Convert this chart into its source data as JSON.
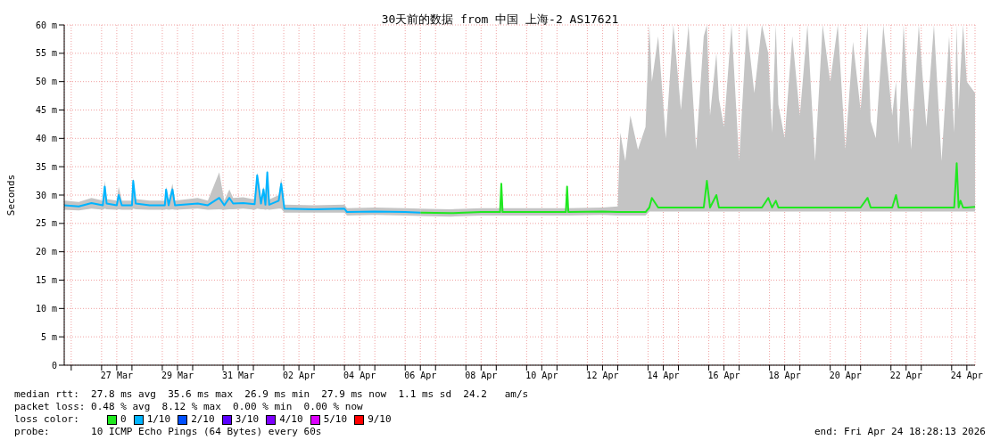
{
  "chart_data": {
    "type": "line",
    "title": "30天前的数据 from 中国 上海-2 AS17621",
    "ylabel": "Seconds",
    "legend_title": "loss color:",
    "legend": "bottom",
    "grid": true,
    "marker": "none",
    "line_style": "solid",
    "xlim": [
      "2026-03-25T18:28",
      "2026-04-24T18:28"
    ],
    "xticks": [
      {
        "value": "2026-03-26T00:00",
        "label": null
      },
      {
        "value": "2026-03-27T00:00",
        "label": null
      },
      {
        "value": "2026-03-27T12:00",
        "label": "27 Mar"
      },
      {
        "value": "2026-03-28T00:00",
        "label": null
      },
      {
        "value": "2026-03-29T00:00",
        "label": null
      },
      {
        "value": "2026-03-29T12:00",
        "label": "29 Mar"
      },
      {
        "value": "2026-03-30T00:00",
        "label": null
      },
      {
        "value": "2026-03-31T00:00",
        "label": null
      },
      {
        "value": "2026-03-31T12:00",
        "label": "31 Mar"
      },
      {
        "value": "2026-04-01T00:00",
        "label": null
      },
      {
        "value": "2026-04-02T00:00",
        "label": null
      },
      {
        "value": "2026-04-02T12:00",
        "label": "02 Apr"
      },
      {
        "value": "2026-04-03T00:00",
        "label": null
      },
      {
        "value": "2026-04-04T00:00",
        "label": null
      },
      {
        "value": "2026-04-04T12:00",
        "label": "04 Apr"
      },
      {
        "value": "2026-04-05T00:00",
        "label": null
      },
      {
        "value": "2026-04-06T00:00",
        "label": null
      },
      {
        "value": "2026-04-06T12:00",
        "label": "06 Apr"
      },
      {
        "value": "2026-04-07T00:00",
        "label": null
      },
      {
        "value": "2026-04-08T00:00",
        "label": null
      },
      {
        "value": "2026-04-08T12:00",
        "label": "08 Apr"
      },
      {
        "value": "2026-04-09T00:00",
        "label": null
      },
      {
        "value": "2026-04-10T00:00",
        "label": null
      },
      {
        "value": "2026-04-10T12:00",
        "label": "10 Apr"
      },
      {
        "value": "2026-04-11T00:00",
        "label": null
      },
      {
        "value": "2026-04-12T00:00",
        "label": null
      },
      {
        "value": "2026-04-12T12:00",
        "label": "12 Apr"
      },
      {
        "value": "2026-04-13T00:00",
        "label": null
      },
      {
        "value": "2026-04-14T00:00",
        "label": null
      },
      {
        "value": "2026-04-14T12:00",
        "label": "14 Apr"
      },
      {
        "value": "2026-04-15T00:00",
        "label": null
      },
      {
        "value": "2026-04-16T00:00",
        "label": null
      },
      {
        "value": "2026-04-16T12:00",
        "label": "16 Apr"
      },
      {
        "value": "2026-04-17T00:00",
        "label": null
      },
      {
        "value": "2026-04-18T00:00",
        "label": null
      },
      {
        "value": "2026-04-18T12:00",
        "label": "18 Apr"
      },
      {
        "value": "2026-04-19T00:00",
        "label": null
      },
      {
        "value": "2026-04-20T00:00",
        "label": null
      },
      {
        "value": "2026-04-20T12:00",
        "label": "20 Apr"
      },
      {
        "value": "2026-04-21T00:00",
        "label": null
      },
      {
        "value": "2026-04-22T00:00",
        "label": null
      },
      {
        "value": "2026-04-22T12:00",
        "label": "22 Apr"
      },
      {
        "value": "2026-04-23T00:00",
        "label": null
      },
      {
        "value": "2026-04-24T00:00",
        "label": null
      },
      {
        "value": "2026-04-24T12:00",
        "label": "24 Apr"
      }
    ],
    "ylim": [
      0,
      60
    ],
    "yticks": [
      0,
      {
        "value": 5,
        "label": "5 m"
      },
      {
        "value": 10,
        "label": "10 m"
      },
      {
        "value": 15,
        "label": "15 m"
      },
      {
        "value": 20,
        "label": "20 m"
      },
      {
        "value": 25,
        "label": "25 m"
      },
      {
        "value": 30,
        "label": "30 m"
      },
      {
        "value": 35,
        "label": "35 m"
      },
      {
        "value": 40,
        "label": "40 m"
      },
      {
        "value": 45,
        "label": "45 m"
      },
      {
        "value": 50,
        "label": "50 m"
      },
      {
        "value": 55,
        "label": "55 m"
      },
      {
        "value": 60,
        "label": "60 m"
      }
    ],
    "series": [
      {
        "name": "0",
        "color": "#20e820",
        "x": [
          "2026-04-06T12:00",
          "2026-04-07T12:00",
          "2026-04-08T12:00",
          "2026-04-09T03:00",
          "2026-04-09T04:00",
          "2026-04-09T05:00",
          "2026-04-10T12:00",
          "2026-04-11T07:00",
          "2026-04-11T08:00",
          "2026-04-11T09:00",
          "2026-04-12T12:00",
          "2026-04-13T00:00",
          "2026-04-13T02:00",
          "2026-04-13T06:00",
          "2026-04-13T10:00",
          "2026-04-13T16:00",
          "2026-04-13T22:00",
          "2026-04-14T01:00",
          "2026-04-14T03:00",
          "2026-04-14T08:00",
          "2026-04-14T14:00",
          "2026-04-14T20:00",
          "2026-04-15T02:00",
          "2026-04-15T08:00",
          "2026-04-15T14:00",
          "2026-04-15T20:00",
          "2026-04-15T22:30",
          "2026-04-16T01:00",
          "2026-04-16T06:00",
          "2026-04-16T08:00",
          "2026-04-16T12:00",
          "2026-04-16T18:00",
          "2026-04-17T00:00",
          "2026-04-17T06:00",
          "2026-04-17T12:00",
          "2026-04-17T18:00",
          "2026-04-17T23:00",
          "2026-04-18T02:00",
          "2026-04-18T05:00",
          "2026-04-18T07:00",
          "2026-04-18T12:00",
          "2026-04-18T18:00",
          "2026-04-19T00:00",
          "2026-04-19T06:00",
          "2026-04-19T12:00",
          "2026-04-19T18:00",
          "2026-04-20T00:00",
          "2026-04-20T06:00",
          "2026-04-20T12:00",
          "2026-04-20T18:00",
          "2026-04-21T00:00",
          "2026-04-21T05:30",
          "2026-04-21T08:00",
          "2026-04-21T12:00",
          "2026-04-21T18:00",
          "2026-04-22T01:00",
          "2026-04-22T04:00",
          "2026-04-22T06:00",
          "2026-04-22T10:00",
          "2026-04-22T16:00",
          "2026-04-22T22:00",
          "2026-04-23T04:00",
          "2026-04-23T10:00",
          "2026-04-23T16:00",
          "2026-04-23T22:00",
          "2026-04-24T02:00",
          "2026-04-24T04:00",
          "2026-04-24T05:30",
          "2026-04-24T07:00",
          "2026-04-24T09:00",
          "2026-04-24T12:00",
          "2026-04-24T18:28"
        ],
        "values": [
          26.9,
          26.8,
          27.0,
          27.0,
          32,
          27.0,
          27.0,
          27.0,
          31.5,
          27.0,
          27.1,
          27.0,
          27.0,
          27.0,
          27.0,
          27.0,
          27.0,
          27.8,
          29.5,
          27.8,
          27.8,
          27.8,
          27.8,
          27.8,
          27.8,
          27.8,
          32.5,
          27.8,
          30,
          27.8,
          27.8,
          27.8,
          27.8,
          27.8,
          27.8,
          27.8,
          29.5,
          27.8,
          29,
          27.8,
          27.8,
          27.8,
          27.8,
          27.8,
          27.8,
          27.8,
          27.8,
          27.8,
          27.8,
          27.8,
          27.8,
          29.5,
          27.8,
          27.8,
          27.8,
          27.8,
          30,
          27.8,
          27.8,
          27.8,
          27.8,
          27.8,
          27.8,
          27.8,
          27.8,
          27.8,
          35.6,
          27.8,
          29,
          27.8,
          27.8,
          27.9
        ],
        "lower": [
          26.3,
          26.2,
          26.4,
          26.4,
          26.4,
          26.4,
          26.4,
          26.4,
          26.4,
          26.4,
          26.5,
          26.4,
          26.4,
          26.4,
          26.4,
          26.4,
          26.4,
          27.1,
          27.1,
          27.1,
          27.1,
          27.1,
          27.1,
          27.1,
          27.1,
          27.1,
          27.1,
          27.1,
          27.1,
          27.1,
          27.1,
          27.1,
          27.1,
          27.1,
          27.1,
          27.1,
          27.1,
          27.1,
          27.1,
          27.1,
          27.1,
          27.1,
          27.1,
          27.1,
          27.1,
          27.1,
          27.1,
          27.1,
          27.1,
          27.1,
          27.1,
          27.1,
          27.1,
          27.1,
          27.1,
          27.1,
          27.1,
          27.1,
          27.1,
          27.1,
          27.1,
          27.1,
          27.1,
          27.1,
          27.1,
          27.1,
          27.1,
          27.1,
          27.1,
          27.1,
          27.1,
          27.1
        ],
        "upper": [
          27.6,
          27.5,
          27.7,
          27.7,
          32,
          27.7,
          27.7,
          27.7,
          32,
          27.7,
          27.8,
          28,
          41,
          36,
          44,
          38,
          42,
          60,
          50,
          58,
          40,
          60,
          45,
          60,
          38,
          58,
          60,
          44,
          55,
          47,
          42,
          60,
          36,
          60,
          48,
          60,
          55,
          41,
          60,
          46,
          40,
          58,
          44,
          60,
          36,
          60,
          50,
          60,
          38,
          57,
          45,
          60,
          43,
          40,
          60,
          44,
          50,
          39,
          60,
          38,
          60,
          42,
          60,
          36,
          58,
          41,
          60,
          45,
          52,
          60,
          50,
          48
        ]
      },
      {
        "name": "1/10",
        "color": "#00b4ff",
        "x": [
          "2026-03-25T18:28",
          "2026-03-26T06:00",
          "2026-03-26T16:00",
          "2026-03-27T01:00",
          "2026-03-27T02:30",
          "2026-03-27T04:00",
          "2026-03-27T12:00",
          "2026-03-27T13:30",
          "2026-03-27T16:00",
          "2026-03-28T00:00",
          "2026-03-28T01:00",
          "2026-03-28T03:00",
          "2026-03-28T14:00",
          "2026-03-29T02:00",
          "2026-03-29T03:00",
          "2026-03-29T05:00",
          "2026-03-29T08:00",
          "2026-03-29T10:00",
          "2026-03-30T04:00",
          "2026-03-30T12:00",
          "2026-03-30T21:00",
          "2026-03-31T01:00",
          "2026-03-31T05:00",
          "2026-03-31T08:00",
          "2026-03-31T16:00",
          "2026-04-01T01:00",
          "2026-04-01T03:00",
          "2026-04-01T06:00",
          "2026-04-01T08:00",
          "2026-04-01T09:30",
          "2026-04-01T11:00",
          "2026-04-01T12:30",
          "2026-04-01T20:00",
          "2026-04-01T22:00",
          "2026-04-02T00:30",
          "2026-04-03T00:00",
          "2026-04-04T00:00",
          "2026-04-04T02:00",
          "2026-04-05T00:00",
          "2026-04-06T00:00",
          "2026-04-06T12:00"
        ],
        "values": [
          28.2,
          28.0,
          28.6,
          28.2,
          31.5,
          28.5,
          28.2,
          30,
          28.2,
          28.2,
          32.5,
          28.5,
          28.2,
          28.2,
          31,
          28.2,
          31,
          28.2,
          28.5,
          28.2,
          29.5,
          28.2,
          29.5,
          28.5,
          28.6,
          28.4,
          33.5,
          28.5,
          31,
          28.3,
          34,
          28.3,
          29,
          32,
          27.6,
          27.5,
          27.6,
          27.0,
          27.1,
          27.0,
          26.9
        ],
        "lower": [
          27.4,
          27.3,
          27.6,
          27.4,
          27.6,
          27.5,
          27.4,
          27.5,
          27.4,
          27.4,
          27.6,
          27.5,
          27.4,
          27.4,
          27.5,
          27.4,
          27.5,
          27.4,
          27.6,
          27.4,
          27.5,
          27.4,
          27.5,
          27.5,
          27.6,
          27.4,
          27.6,
          27.5,
          27.5,
          27.4,
          27.5,
          27.4,
          27.6,
          27.6,
          26.9,
          26.9,
          26.9,
          26.4,
          26.5,
          26.4,
          26.3
        ],
        "upper": [
          29,
          28.8,
          29.5,
          29,
          32.5,
          29.3,
          29,
          31.5,
          29,
          29,
          33,
          29.3,
          29,
          29,
          31.5,
          29,
          32,
          29,
          29.5,
          29,
          34,
          29,
          31,
          29.5,
          29.6,
          29.2,
          34,
          29.5,
          31.5,
          29.2,
          34.5,
          29.2,
          30,
          33,
          28.3,
          28.2,
          28.3,
          27.7,
          27.8,
          27.7,
          27.6
        ]
      },
      {
        "name": "2/10",
        "color": "#0050ff"
      },
      {
        "name": "3/10",
        "color": "#5a00ff"
      },
      {
        "name": "4/10",
        "color": "#7e00ff"
      },
      {
        "name": "5/10",
        "color": "#dd00ff"
      },
      {
        "name": "9/10",
        "color": "#ff0000"
      }
    ],
    "annotations": [
      "median rtt:  27.8 ms avg  35.6 ms max  26.9 ms min  27.9 ms now  1.1 ms sd  24.2   am/s",
      "packet loss: 0.48 % avg  8.12 % max  0.00 % min  0.00 % now",
      "probe:       10 ICMP Echo Pings (64 Bytes) every 60s",
      "end: Fri Apr 24 18:28:13 2026"
    ]
  }
}
